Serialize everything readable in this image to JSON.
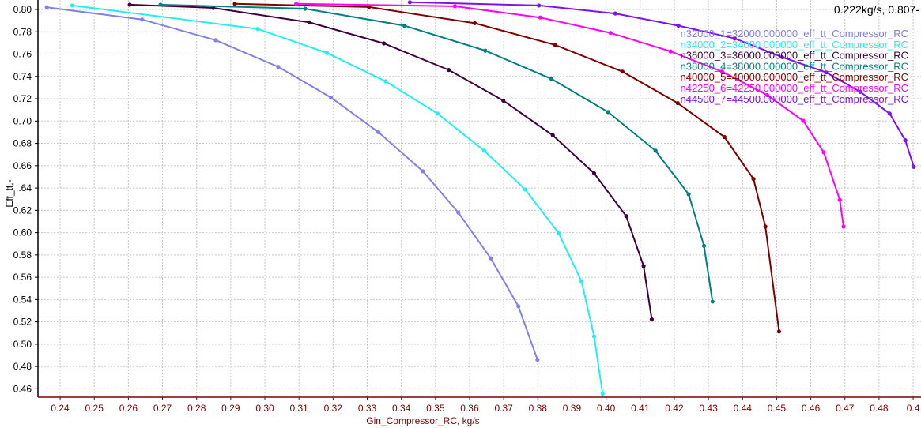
{
  "readout": "0.222kg/s, 0.807-",
  "chart_data": {
    "type": "line",
    "title": "",
    "xlabel": "Gin_Compressor_RC, kg/s",
    "ylabel": "Eff_tt,-",
    "xlim": [
      0.2335,
      0.4923
    ],
    "ylim": [
      0.4525,
      0.8085
    ],
    "grid": true,
    "legend_position": "top-right",
    "x_ticks": [
      "0.24",
      "0.25",
      "0.26",
      "0.27",
      "0.28",
      "0.29",
      "0.30",
      "0.31",
      "0.32",
      "0.33",
      "0.34",
      "0.35",
      "0.36",
      "0.37",
      "0.38",
      "0.39",
      "0.40",
      "0.41",
      "0.42",
      "0.43",
      "0.44",
      "0.45",
      "0.46",
      "0.47",
      "0.48",
      "0.4"
    ],
    "y_ticks": [
      "0.46",
      "0.48",
      "0.50",
      "0.52",
      "0.54",
      "0.56",
      "0.58",
      "0.60",
      "0.62",
      ".64",
      "0.66",
      "0.68",
      "0.70",
      "0.72",
      "0.74",
      "0.76",
      "0.78",
      "0.80"
    ],
    "series": [
      {
        "name": "n32000_1=32000.000000_eff_tt_Compressor_RC",
        "color": "#8080e8",
        "x": [
          0.2361,
          0.264,
          0.2856,
          0.3039,
          0.3194,
          0.3333,
          0.3463,
          0.3567,
          0.3662,
          0.3743,
          0.3799
        ],
        "y": [
          0.802,
          0.791,
          0.7725,
          0.7486,
          0.721,
          0.69,
          0.655,
          0.618,
          0.577,
          0.534,
          0.486
        ]
      },
      {
        "name": "n34000_2=34000.000000_eff_tt_Compressor_RC",
        "color": "#20f0f0",
        "x": [
          0.2435,
          0.2979,
          0.3182,
          0.3354,
          0.3506,
          0.3643,
          0.3763,
          0.3861,
          0.3928,
          0.3965,
          0.399
        ],
        "y": [
          0.8036,
          0.7826,
          0.761,
          0.7356,
          0.7067,
          0.6734,
          0.6387,
          0.5996,
          0.5562,
          0.507,
          0.4557
        ]
      },
      {
        "name": "n36000_3=36000.000000_eff_tt_Compressor_RC",
        "color": "#400040",
        "x": [
          0.2604,
          0.2849,
          0.3131,
          0.3349,
          0.3539,
          0.3699,
          0.3844,
          0.3965,
          0.4059,
          0.411,
          0.4134
        ],
        "y": [
          0.8043,
          0.8014,
          0.7884,
          0.7696,
          0.7458,
          0.7183,
          0.6872,
          0.6532,
          0.6148,
          0.57,
          0.5222
        ]
      },
      {
        "name": "n38000_4=38000.000000_eff_tt_Compressor_RC",
        "color": "#008080",
        "x": [
          0.2694,
          0.3118,
          0.3409,
          0.3646,
          0.384,
          0.4006,
          0.4145,
          0.4242,
          0.4287,
          0.4312
        ],
        "y": [
          0.8043,
          0.8007,
          0.7855,
          0.7631,
          0.7378,
          0.7081,
          0.6734,
          0.6344,
          0.5881,
          0.5382
        ]
      },
      {
        "name": "n40000_5=40000.000000_eff_tt_Compressor_RC",
        "color": "#800000",
        "x": [
          0.2912,
          0.3305,
          0.3615,
          0.3851,
          0.4048,
          0.421,
          0.4347,
          0.4432,
          0.4467,
          0.4507
        ],
        "y": [
          0.8051,
          0.8022,
          0.7877,
          0.7682,
          0.7443,
          0.7161,
          0.6857,
          0.6481,
          0.6054,
          0.5114
        ]
      },
      {
        "name": "n42250_6=42250.000000_eff_tt_Compressor_RC",
        "color": "#ff00ff",
        "x": [
          0.3092,
          0.3557,
          0.3807,
          0.4013,
          0.4189,
          0.434,
          0.4472,
          0.4578,
          0.4638,
          0.4685,
          0.4696
        ],
        "y": [
          0.8051,
          0.8029,
          0.7928,
          0.779,
          0.7624,
          0.7443,
          0.7233,
          0.7002,
          0.672,
          0.6293,
          0.6054
        ]
      },
      {
        "name": "n44500_7=44500.000000_eff_tt_Compressor_RC",
        "color": "#7f10f0",
        "x": [
          0.3425,
          0.3803,
          0.4027,
          0.4212,
          0.4377,
          0.4516,
          0.4645,
          0.4745,
          0.4831,
          0.4877,
          0.4902
        ],
        "y": [
          0.8065,
          0.8036,
          0.7964,
          0.7855,
          0.774,
          0.7573,
          0.7436,
          0.7262,
          0.7067,
          0.6828,
          0.659
        ]
      }
    ]
  }
}
